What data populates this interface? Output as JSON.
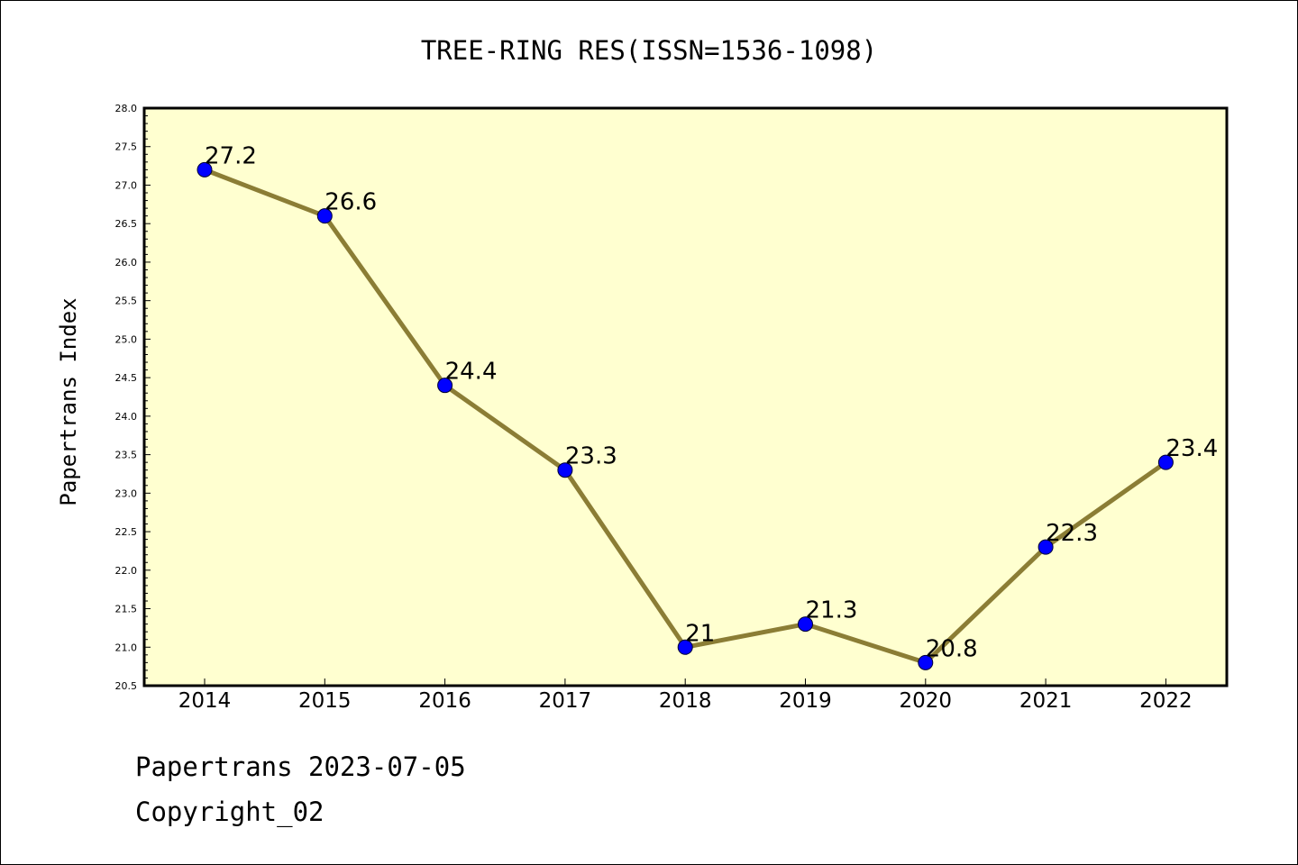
{
  "chart_data": {
    "type": "line",
    "title": "TREE-RING RES(ISSN=1536-1098)",
    "xlabel": "",
    "ylabel": "Papertrans Index",
    "categories": [
      "2014",
      "2015",
      "2016",
      "2017",
      "2018",
      "2019",
      "2020",
      "2021",
      "2022"
    ],
    "series": [
      {
        "values": [
          27.2,
          26.6,
          24.4,
          23.3,
          21,
          21.3,
          20.8,
          22.3,
          23.4
        ],
        "labels": [
          "27.2",
          "26.6",
          "24.4",
          "23.3",
          "21",
          "21.3",
          "20.8",
          "22.3",
          "23.4"
        ]
      }
    ],
    "ylim": [
      20.5,
      28.0
    ],
    "yticks": [
      "20.5",
      "21.0",
      "21.5",
      "22.0",
      "22.5",
      "23.0",
      "23.5",
      "24.0",
      "24.5",
      "25.0",
      "25.5",
      "26.0",
      "26.5",
      "27.0",
      "27.5",
      "28.0"
    ],
    "grid": false,
    "legend": "none",
    "colors": {
      "plot_background": "#ffffd0",
      "line": "#8b7d35",
      "marker": "#0000ff",
      "axis": "#000000"
    }
  },
  "footer": {
    "line1": "Papertrans 2023-07-05",
    "line2": "Copyright_02"
  }
}
